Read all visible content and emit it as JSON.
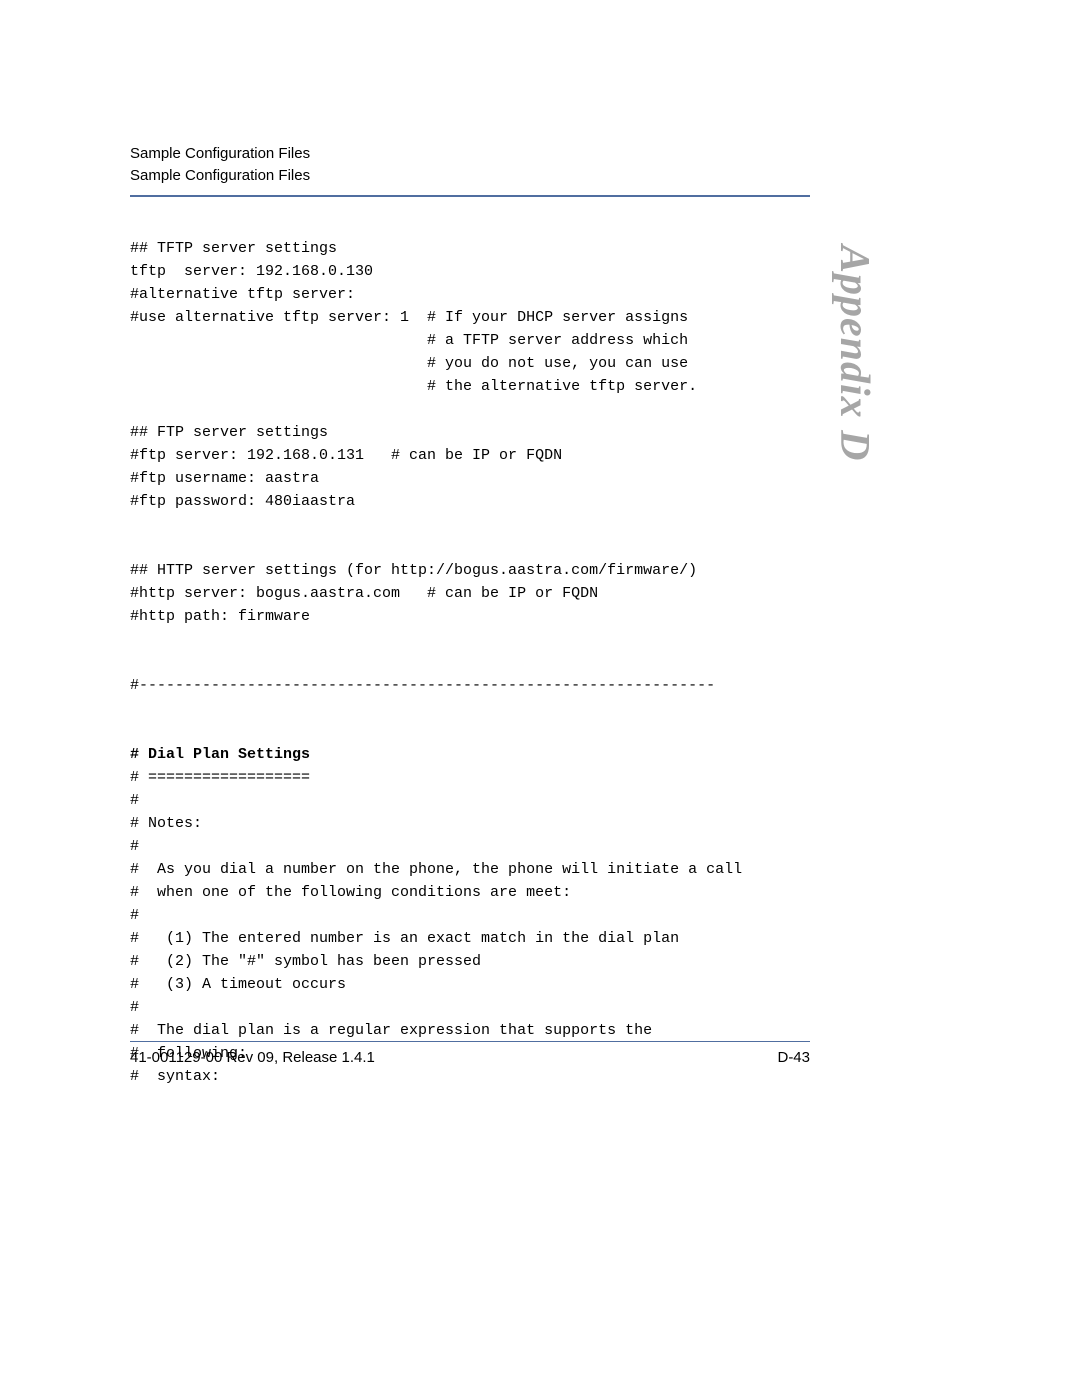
{
  "header": {
    "line1": "Sample Configuration Files",
    "line2": "Sample Configuration Files"
  },
  "side_label": "Appendix D",
  "code": {
    "lines": [
      "## TFTP server settings",
      "tftp  server: 192.168.0.130",
      "#alternative tftp server:",
      "#use alternative tftp server: 1  # If your DHCP server assigns",
      "                                 # a TFTP server address which",
      "                                 # you do not use, you can use",
      "                                 # the alternative tftp server.",
      "",
      "## FTP server settings",
      "#ftp server: 192.168.0.131   # can be IP or FQDN",
      "#ftp username: aastra",
      "#ftp password: 480iaastra",
      "",
      "",
      "## HTTP server settings (for http://bogus.aastra.com/firmware/)",
      "#http server: bogus.aastra.com   # can be IP or FQDN",
      "#http path: firmware",
      "",
      "",
      "#----------------------------------------------------------------",
      "",
      ""
    ],
    "bold_line": "# Dial Plan Settings",
    "lines2": [
      "# ==================",
      "#",
      "# Notes:",
      "#",
      "#  As you dial a number on the phone, the phone will initiate a call",
      "#  when one of the following conditions are meet:",
      "#",
      "#   (1) The entered number is an exact match in the dial plan",
      "#   (2) The \"#\" symbol has been pressed",
      "#   (3) A timeout occurs",
      "#",
      "#  The dial plan is a regular expression that supports the",
      "#  following:",
      "#  syntax:"
    ]
  },
  "footer": {
    "left": "41-001129-00 Rev 09, Release 1.4.1",
    "right": "D-43"
  },
  "colors": {
    "rule": "#506ea0",
    "side_text": "#a6a6a6",
    "text": "#000000",
    "background": "#ffffff"
  }
}
